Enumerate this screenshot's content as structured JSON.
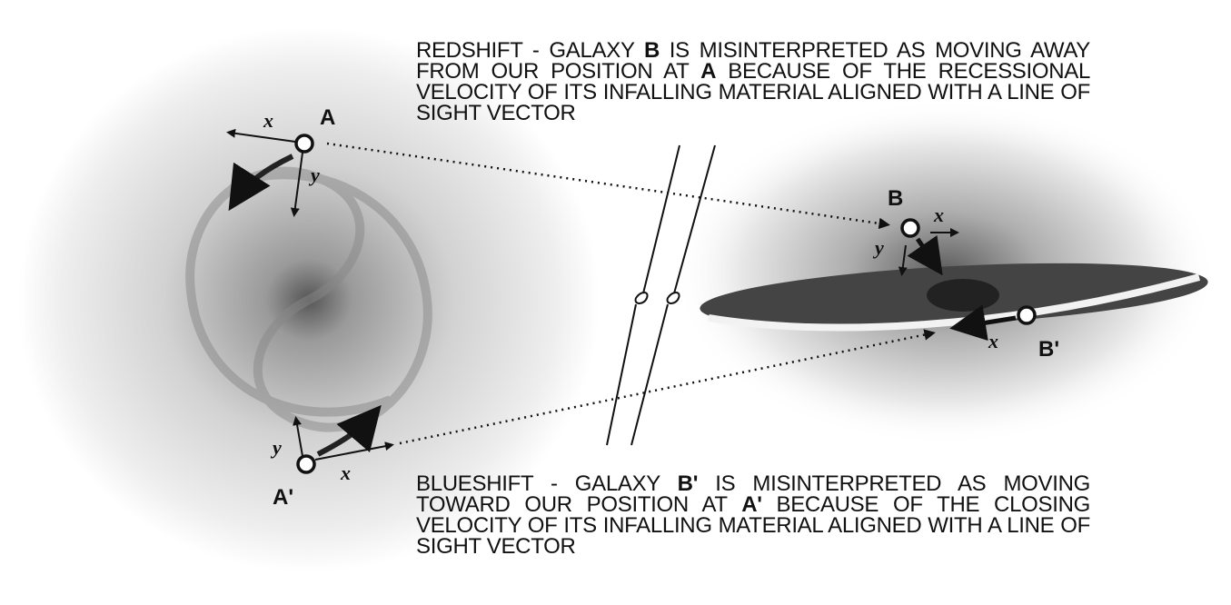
{
  "redshift": {
    "segments": [
      "REDSHIFT - GALAXY ",
      "B",
      " IS MISINTERPRETED AS MOVING AWAY FROM OUR POSITION AT ",
      "A",
      " BECAUSE OF THE RECESSIONAL VELOCITY OF ITS INFALLING MATERIAL ALIGNED WITH A LINE OF SIGHT VECTOR"
    ]
  },
  "blueshift": {
    "segments": [
      "BLUESHIFT - GALAXY ",
      "B'",
      " IS MISINTERPRETED AS MOVING TOWARD OUR POSITION AT ",
      "A'",
      " BECAUSE OF THE CLOSING VELOCITY OF ITS INFALLING MATERIAL ALIGNED WITH A LINE OF SIGHT VECTOR"
    ]
  },
  "points": [
    {
      "label": "A",
      "x_label": "x",
      "y_label": "y"
    },
    {
      "label": "A'",
      "x_label": "x",
      "y_label": "y"
    },
    {
      "label": "B",
      "x_label": "x",
      "y_label": "y"
    },
    {
      "label": "B'",
      "x_label": "x"
    }
  ]
}
